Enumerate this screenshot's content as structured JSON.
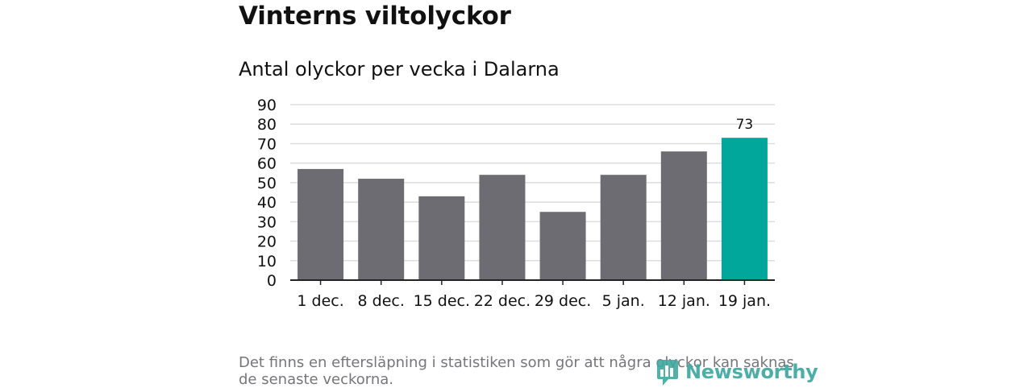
{
  "title": "Vinterns viltolyckor",
  "subtitle": "Antal olyckor per vecka i Dalarna",
  "footnote": "Det finns en eftersläpning i statistiken som gör att några olyckor kan saknas de senaste veckorna.",
  "brand": {
    "name": "Newsworthy",
    "icon": "newsworthy-logo-icon"
  },
  "colors": {
    "bar": "#6d6c72",
    "highlight": "#00a79a",
    "grid": "#dddddd",
    "axis": "#222222",
    "text": "#111111",
    "footnote": "#76767a"
  },
  "chart_data": {
    "type": "bar",
    "title": "Antal olyckor per vecka i Dalarna",
    "xlabel": "",
    "ylabel": "",
    "categories": [
      "1 dec.",
      "8 dec.",
      "15 dec.",
      "22 dec.",
      "29 dec.",
      "5 jan.",
      "12 jan.",
      "19 jan."
    ],
    "values": [
      57,
      52,
      43,
      54,
      35,
      54,
      66,
      73
    ],
    "highlight_index": 7,
    "data_labels": [
      {
        "index": 7,
        "text": "73"
      }
    ],
    "ylim": [
      0,
      90
    ],
    "yticks": [
      0,
      10,
      20,
      30,
      40,
      50,
      60,
      70,
      80,
      90
    ],
    "grid": true,
    "legend": false
  }
}
